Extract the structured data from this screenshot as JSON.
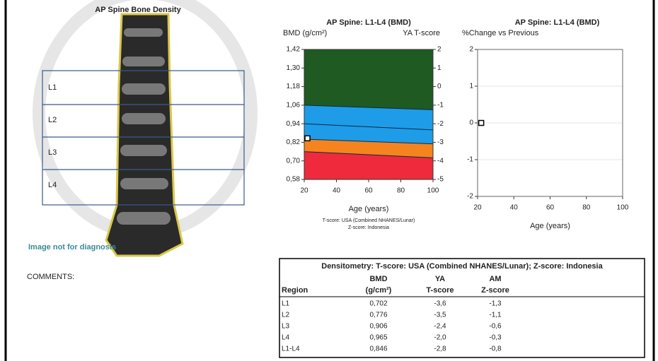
{
  "image": {
    "title": "AP Spine Bone Density",
    "regions": [
      "L1",
      "L2",
      "L3",
      "L4"
    ],
    "watermark": "Image not for diagnosis"
  },
  "comments": "COMMENTS:",
  "chart_data": [
    {
      "type": "area",
      "title": "AP Spine: L1-L4 (BMD)",
      "y_label": "BMD (g/cm²)",
      "y2_label": "YA T-score",
      "x_label": "Age (years)",
      "footnotes": [
        "T-score: USA (Combined NHANES/Lunar)",
        "Z-score: Indonesia"
      ],
      "x": [
        20,
        100
      ],
      "series": [
        {
          "color": "#1f5a23",
          "values": [
            1.42,
            1.42
          ]
        },
        {
          "color": "#1e9ce8",
          "values": [
            1.06,
            1.03
          ]
        },
        {
          "color": "#0b2a44",
          "kind": "line",
          "values": [
            0.94,
            0.9
          ]
        },
        {
          "color": "#f5841f",
          "values": [
            0.84,
            0.81
          ]
        },
        {
          "color": "#ee2a3c",
          "values": [
            0.76,
            0.72
          ]
        }
      ],
      "points": {
        "x": [
          22
        ],
        "y": [
          0.846
        ]
      },
      "xlim": [
        20,
        100
      ],
      "xticks": [
        20,
        40,
        60,
        80,
        100
      ],
      "ylim": [
        0.58,
        1.42
      ],
      "yticks": [
        {
          "value": 0.58,
          "label": "0,58"
        },
        {
          "value": 0.7,
          "label": "0,70"
        },
        {
          "value": 0.82,
          "label": "0,82"
        },
        {
          "value": 0.94,
          "label": "0,94"
        },
        {
          "value": 1.06,
          "label": "1,06"
        },
        {
          "value": 1.18,
          "label": "1,18"
        },
        {
          "value": 1.3,
          "label": "1,30"
        },
        {
          "value": 1.42,
          "label": "1,42"
        }
      ],
      "y2lim": [
        -5,
        2
      ],
      "y2ticks": [
        -5,
        -4,
        -3,
        -2,
        -1,
        0,
        1,
        2
      ]
    },
    {
      "type": "scatter",
      "title": "AP Spine: L1-L4 (BMD)",
      "y_label": "%Change vs Previous",
      "x_label": "Age (years)",
      "points": {
        "x": [
          22
        ],
        "y": [
          0
        ]
      },
      "xlim": [
        20,
        100
      ],
      "xticks": [
        20,
        40,
        60,
        80,
        100
      ],
      "ylim": [
        -2,
        2
      ],
      "yticks": [
        -2,
        -1,
        0,
        1,
        2
      ],
      "grid": true
    }
  ],
  "table": {
    "title": "Densitometry: T-score: USA (Combined NHANES/Lunar); Z-score: Indonesia",
    "header_top": [
      "",
      "BMD",
      "YA",
      "AM"
    ],
    "header": [
      "Region",
      "(g/cm²)",
      "T-score",
      "Z-score"
    ],
    "rows": [
      [
        "L1",
        "0,702",
        "-3,6",
        "-1,3"
      ],
      [
        "L2",
        "0,776",
        "-3,5",
        "-1,1"
      ],
      [
        "L3",
        "0,906",
        "-2,4",
        "-0,6"
      ],
      [
        "L4",
        "0,965",
        "-2,0",
        "-0,3"
      ],
      [
        "L1-L4",
        "0,846",
        "-2,8",
        "-0,8"
      ]
    ]
  }
}
